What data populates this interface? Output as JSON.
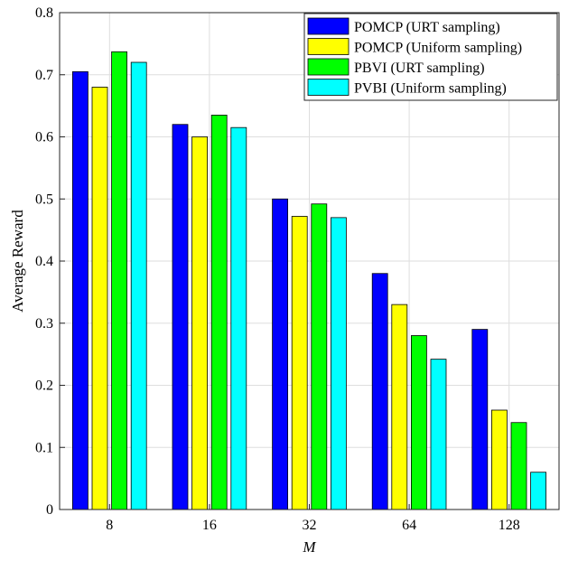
{
  "chart_data": {
    "type": "bar",
    "title": "",
    "xlabel": "M",
    "ylabel": "Average Reward",
    "categories": [
      "8",
      "16",
      "32",
      "64",
      "128"
    ],
    "ylim": [
      0,
      0.8
    ],
    "yticks": [
      "0",
      "0.1",
      "0.2",
      "0.3",
      "0.4",
      "0.5",
      "0.6",
      "0.7",
      "0.8"
    ],
    "grid": true,
    "legend_position": "top-right",
    "series": [
      {
        "name": "POMCP (URT sampling)",
        "color": "#0000ff",
        "values": [
          0.705,
          0.62,
          0.5,
          0.38,
          0.29
        ]
      },
      {
        "name": "POMCP (Uniform sampling)",
        "color": "#ffff00",
        "values": [
          0.68,
          0.6,
          0.472,
          0.33,
          0.16
        ]
      },
      {
        "name": "PBVI (URT sampling)",
        "color": "#00ff00",
        "values": [
          0.737,
          0.635,
          0.492,
          0.28,
          0.14
        ]
      },
      {
        "name": "PVBI (Uniform sampling)",
        "color": "#00ffff",
        "values": [
          0.72,
          0.615,
          0.47,
          0.242,
          0.06
        ]
      }
    ]
  }
}
